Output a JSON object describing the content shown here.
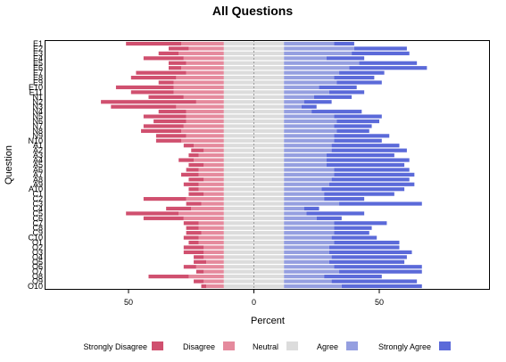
{
  "chart_data": {
    "type": "bar",
    "orientation": "horizontal",
    "stacked": "diverging",
    "title": "All Questions",
    "xlabel": "Percent",
    "ylabel": "Question",
    "xlim": [
      -80,
      90
    ],
    "xticks": [
      -50,
      0,
      50
    ],
    "xtick_labels": [
      "50",
      "0",
      "50"
    ],
    "grid": false,
    "legend_position": "bottom",
    "levels": [
      "Strongly Disagree",
      "Disagree",
      "Neutral",
      "Agree",
      "Strongly Agree"
    ],
    "colors": [
      "#d0506f",
      "#e58a9d",
      "#dcdcdc",
      "#959fe0",
      "#5b6ad9"
    ],
    "categories": [
      "E1",
      "E2",
      "E3",
      "E4",
      "E5",
      "E6",
      "E7",
      "E8",
      "E9",
      "E10",
      "E11",
      "N1",
      "N2",
      "N3",
      "N4",
      "N5",
      "N6",
      "N7",
      "N8",
      "N9",
      "N10",
      "A1",
      "A2",
      "A3",
      "A4",
      "A5",
      "A6",
      "A7",
      "A8",
      "A9",
      "A10",
      "C1",
      "C2",
      "C3",
      "C4",
      "C5",
      "C6",
      "C7",
      "C8",
      "C9",
      "C10",
      "O1",
      "O2",
      "O3",
      "O4",
      "O5",
      "O6",
      "O7",
      "O8",
      "O9",
      "O10"
    ],
    "series": [
      {
        "name": "Strongly Disagree",
        "values": [
          22,
          8,
          8,
          16,
          7,
          5,
          20,
          18,
          6,
          23,
          17,
          14,
          38,
          26,
          11,
          17,
          13,
          16,
          16,
          12,
          10,
          4,
          5,
          4,
          6,
          6,
          5,
          7,
          6,
          6,
          4,
          6,
          17,
          6,
          10,
          21,
          16,
          6,
          5,
          6,
          6,
          4,
          8,
          8,
          4,
          5,
          5,
          3,
          16,
          4,
          2
        ]
      },
      {
        "name": "Disagree",
        "values": [
          17,
          14,
          18,
          16,
          15,
          17,
          15,
          19,
          20,
          20,
          20,
          16,
          11,
          19,
          15,
          15,
          15,
          16,
          17,
          15,
          17,
          12,
          8,
          10,
          12,
          8,
          10,
          10,
          8,
          10,
          10,
          8,
          15,
          9,
          13,
          18,
          16,
          10,
          10,
          9,
          10,
          10,
          8,
          8,
          8,
          7,
          11,
          8,
          14,
          8,
          7
        ]
      },
      {
        "name": "Neutral",
        "values": [
          24,
          24,
          24,
          24,
          24,
          24,
          24,
          24,
          24,
          24,
          24,
          24,
          24,
          24,
          24,
          24,
          24,
          24,
          24,
          24,
          24,
          24,
          24,
          24,
          24,
          24,
          24,
          24,
          24,
          24,
          24,
          24,
          24,
          24,
          24,
          24,
          24,
          24,
          24,
          24,
          24,
          24,
          24,
          24,
          24,
          24,
          24,
          24,
          24,
          24,
          24
        ]
      },
      {
        "name": "Agree",
        "values": [
          20,
          28,
          27,
          17,
          30,
          26,
          22,
          20,
          21,
          14,
          18,
          12,
          8,
          7,
          11,
          20,
          21,
          20,
          21,
          20,
          20,
          19,
          19,
          17,
          17,
          17,
          20,
          20,
          19,
          18,
          15,
          16,
          16,
          22,
          8,
          9,
          13,
          20,
          20,
          20,
          19,
          20,
          18,
          18,
          19,
          18,
          20,
          22,
          16,
          19,
          23
        ]
      },
      {
        "name": "Strongly Agree",
        "values": [
          8,
          21,
          23,
          15,
          23,
          31,
          18,
          16,
          18,
          15,
          14,
          15,
          11,
          6,
          20,
          19,
          17,
          15,
          13,
          22,
          19,
          27,
          30,
          27,
          33,
          31,
          30,
          32,
          31,
          34,
          33,
          28,
          16,
          33,
          6,
          23,
          10,
          21,
          15,
          14,
          18,
          26,
          28,
          33,
          30,
          30,
          35,
          33,
          23,
          34,
          32
        ]
      }
    ]
  }
}
